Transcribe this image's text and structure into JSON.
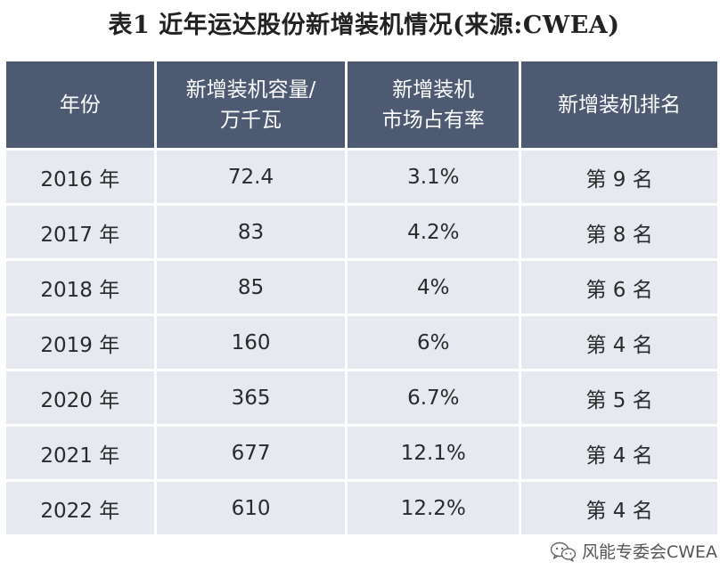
{
  "title": "表1 近年运达股份新增装机情况(来源:CWEA)",
  "table": {
    "headers": [
      [
        "年份"
      ],
      [
        "新增装机容量/",
        "万千瓦"
      ],
      [
        "新增装机",
        "市场占有率"
      ],
      [
        "新增装机排名"
      ]
    ],
    "rows": [
      [
        "2016 年",
        "72.4",
        "3.1%",
        "第 9 名"
      ],
      [
        "2017 年",
        "83",
        "4.2%",
        "第 8 名"
      ],
      [
        "2018 年",
        "85",
        "4%",
        "第 6 名"
      ],
      [
        "2019 年",
        "160",
        "6%",
        "第 4 名"
      ],
      [
        "2020 年",
        "365",
        "6.7%",
        "第 5 名"
      ],
      [
        "2021 年",
        "677",
        "12.1%",
        "第 4 名"
      ],
      [
        "2022 年",
        "610",
        "12.2%",
        "第 4 名"
      ]
    ]
  },
  "footer": {
    "icon": "wechat-icon",
    "text": "风能专委会CWEA"
  },
  "colors": {
    "header_bg": "#4d5a72",
    "cell_bg": "#e7e9f0"
  }
}
